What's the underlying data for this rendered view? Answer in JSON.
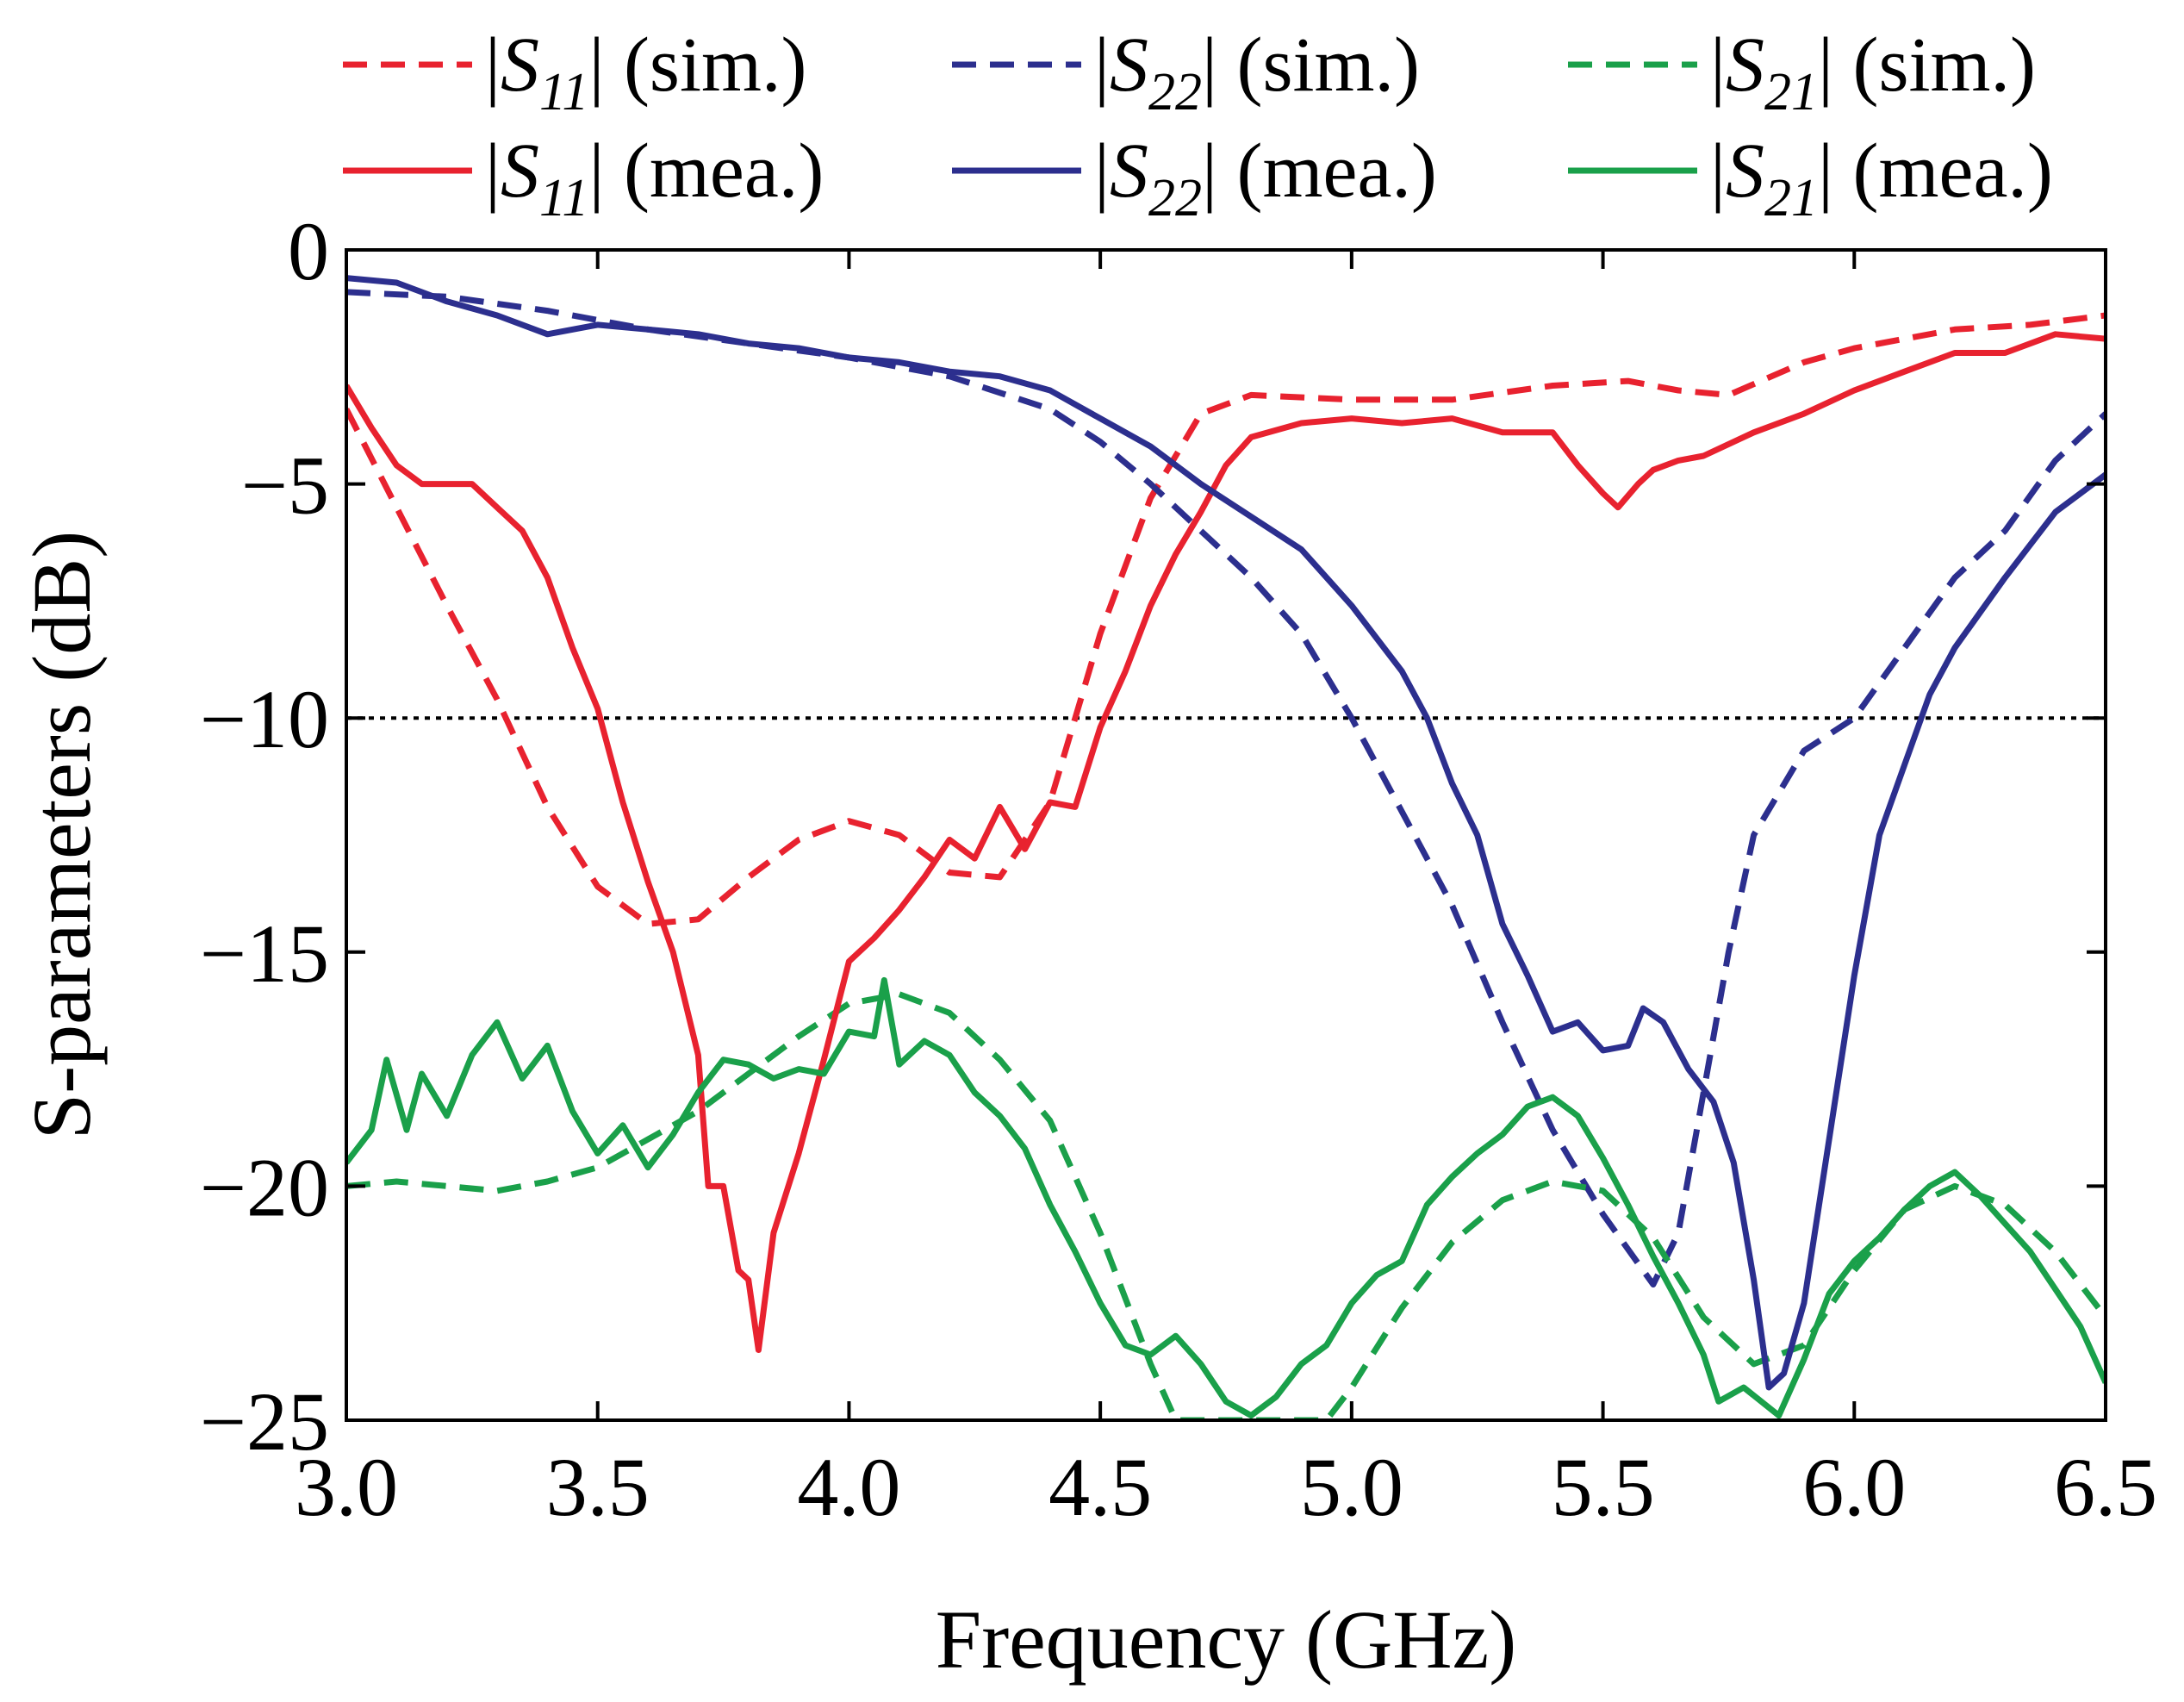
{
  "chart_data": {
    "type": "line",
    "title": "",
    "xlabel": "Frequency (GHz)",
    "ylabel": "S-parameters (dB)",
    "xlim": [
      3.0,
      6.5
    ],
    "ylim": [
      -25,
      0
    ],
    "xticks": [
      3.0,
      3.5,
      4.0,
      4.5,
      5.0,
      5.5,
      6.0,
      6.5
    ],
    "xtick_labels": [
      "3.0",
      "3.5",
      "4.0",
      "4.5",
      "5.0",
      "5.5",
      "6.0",
      "6.5"
    ],
    "yticks": [
      0,
      -5,
      -10,
      -15,
      -20,
      -25
    ],
    "ytick_labels": [
      "0",
      "−5",
      "−10",
      "−15",
      "−20",
      "−25"
    ],
    "reference_line": {
      "y": -10,
      "style": "dotted",
      "color": "#000000"
    },
    "legend_position": "top",
    "series": [
      {
        "name": "|S11| (sim.)",
        "sym": "S",
        "sub": "11",
        "note": "(sim.)",
        "color": "#e8222f",
        "style": "dashed",
        "points": [
          [
            3.0,
            -3.4
          ],
          [
            3.1,
            -5.5
          ],
          [
            3.2,
            -7.6
          ],
          [
            3.3,
            -9.6
          ],
          [
            3.4,
            -11.9
          ],
          [
            3.5,
            -13.6
          ],
          [
            3.6,
            -14.4
          ],
          [
            3.7,
            -14.3
          ],
          [
            3.8,
            -13.4
          ],
          [
            3.9,
            -12.6
          ],
          [
            4.0,
            -12.2
          ],
          [
            4.1,
            -12.5
          ],
          [
            4.2,
            -13.3
          ],
          [
            4.3,
            -13.4
          ],
          [
            4.4,
            -11.8
          ],
          [
            4.45,
            -10.0
          ],
          [
            4.5,
            -8.2
          ],
          [
            4.6,
            -5.3
          ],
          [
            4.7,
            -3.5
          ],
          [
            4.8,
            -3.1
          ],
          [
            5.0,
            -3.2
          ],
          [
            5.2,
            -3.2
          ],
          [
            5.4,
            -2.9
          ],
          [
            5.55,
            -2.8
          ],
          [
            5.65,
            -3.0
          ],
          [
            5.75,
            -3.1
          ],
          [
            5.9,
            -2.4
          ],
          [
            6.0,
            -2.1
          ],
          [
            6.2,
            -1.7
          ],
          [
            6.35,
            -1.6
          ],
          [
            6.5,
            -1.4
          ]
        ]
      },
      {
        "name": "|S22| (sim.)",
        "sym": "S",
        "sub": "22",
        "note": "(sim.)",
        "color": "#2c2f8e",
        "style": "dashed",
        "points": [
          [
            3.0,
            -0.9
          ],
          [
            3.2,
            -1.0
          ],
          [
            3.4,
            -1.3
          ],
          [
            3.6,
            -1.7
          ],
          [
            3.8,
            -2.0
          ],
          [
            4.0,
            -2.3
          ],
          [
            4.2,
            -2.7
          ],
          [
            4.4,
            -3.4
          ],
          [
            4.5,
            -4.1
          ],
          [
            4.6,
            -5.0
          ],
          [
            4.7,
            -6.0
          ],
          [
            4.8,
            -7.0
          ],
          [
            4.9,
            -8.2
          ],
          [
            5.0,
            -10.0
          ],
          [
            5.1,
            -12.0
          ],
          [
            5.2,
            -14.0
          ],
          [
            5.3,
            -16.5
          ],
          [
            5.4,
            -18.8
          ],
          [
            5.5,
            -20.6
          ],
          [
            5.6,
            -22.1
          ],
          [
            5.65,
            -21.0
          ],
          [
            5.7,
            -18.0
          ],
          [
            5.75,
            -15.0
          ],
          [
            5.8,
            -12.5
          ],
          [
            5.9,
            -10.7
          ],
          [
            6.0,
            -10.0
          ],
          [
            6.1,
            -8.5
          ],
          [
            6.2,
            -7.0
          ],
          [
            6.3,
            -6.0
          ],
          [
            6.4,
            -4.5
          ],
          [
            6.5,
            -3.5
          ]
        ]
      },
      {
        "name": "|S21| (sim.)",
        "sym": "S",
        "sub": "21",
        "note": "(sim.)",
        "color": "#1aa04a",
        "style": "dashed",
        "points": [
          [
            3.0,
            -20.0
          ],
          [
            3.1,
            -19.9
          ],
          [
            3.2,
            -20.0
          ],
          [
            3.3,
            -20.1
          ],
          [
            3.4,
            -19.9
          ],
          [
            3.5,
            -19.6
          ],
          [
            3.6,
            -19.0
          ],
          [
            3.7,
            -18.4
          ],
          [
            3.8,
            -17.6
          ],
          [
            3.9,
            -16.8
          ],
          [
            4.0,
            -16.1
          ],
          [
            4.1,
            -15.9
          ],
          [
            4.2,
            -16.3
          ],
          [
            4.3,
            -17.3
          ],
          [
            4.4,
            -18.6
          ],
          [
            4.5,
            -21.0
          ],
          [
            4.6,
            -23.8
          ],
          [
            4.65,
            -25.0
          ],
          [
            4.95,
            -25.0
          ],
          [
            5.0,
            -24.3
          ],
          [
            5.1,
            -22.6
          ],
          [
            5.2,
            -21.2
          ],
          [
            5.3,
            -20.3
          ],
          [
            5.4,
            -19.9
          ],
          [
            5.5,
            -20.1
          ],
          [
            5.6,
            -21.1
          ],
          [
            5.7,
            -22.8
          ],
          [
            5.8,
            -23.8
          ],
          [
            5.9,
            -23.4
          ],
          [
            6.0,
            -21.8
          ],
          [
            6.1,
            -20.5
          ],
          [
            6.2,
            -20.0
          ],
          [
            6.3,
            -20.4
          ],
          [
            6.4,
            -21.4
          ],
          [
            6.5,
            -22.8
          ]
        ]
      },
      {
        "name": "|S11| (mea.)",
        "sym": "S",
        "sub": "11",
        "note": "(mea.)",
        "color": "#e8222f",
        "style": "solid",
        "points": [
          [
            3.0,
            -2.9
          ],
          [
            3.05,
            -3.8
          ],
          [
            3.1,
            -4.6
          ],
          [
            3.15,
            -5.0
          ],
          [
            3.2,
            -5.0
          ],
          [
            3.25,
            -5.0
          ],
          [
            3.3,
            -5.5
          ],
          [
            3.35,
            -6.0
          ],
          [
            3.4,
            -7.0
          ],
          [
            3.45,
            -8.5
          ],
          [
            3.5,
            -9.8
          ],
          [
            3.55,
            -11.8
          ],
          [
            3.6,
            -13.5
          ],
          [
            3.65,
            -15.0
          ],
          [
            3.7,
            -17.2
          ],
          [
            3.72,
            -20.0
          ],
          [
            3.75,
            -20.0
          ],
          [
            3.78,
            -21.8
          ],
          [
            3.8,
            -22.0
          ],
          [
            3.82,
            -23.5
          ],
          [
            3.85,
            -21.0
          ],
          [
            3.9,
            -19.3
          ],
          [
            3.95,
            -17.3
          ],
          [
            4.0,
            -15.2
          ],
          [
            4.05,
            -14.7
          ],
          [
            4.1,
            -14.1
          ],
          [
            4.15,
            -13.4
          ],
          [
            4.2,
            -12.6
          ],
          [
            4.25,
            -13.0
          ],
          [
            4.3,
            -11.9
          ],
          [
            4.35,
            -12.8
          ],
          [
            4.4,
            -11.8
          ],
          [
            4.45,
            -11.9
          ],
          [
            4.5,
            -10.2
          ],
          [
            4.55,
            -9.0
          ],
          [
            4.6,
            -7.6
          ],
          [
            4.65,
            -6.5
          ],
          [
            4.7,
            -5.6
          ],
          [
            4.75,
            -4.6
          ],
          [
            4.8,
            -4.0
          ],
          [
            4.9,
            -3.7
          ],
          [
            5.0,
            -3.6
          ],
          [
            5.1,
            -3.7
          ],
          [
            5.2,
            -3.6
          ],
          [
            5.3,
            -3.9
          ],
          [
            5.4,
            -3.9
          ],
          [
            5.45,
            -4.6
          ],
          [
            5.5,
            -5.2
          ],
          [
            5.53,
            -5.5
          ],
          [
            5.57,
            -5.0
          ],
          [
            5.6,
            -4.7
          ],
          [
            5.65,
            -4.5
          ],
          [
            5.7,
            -4.4
          ],
          [
            5.8,
            -3.9
          ],
          [
            5.9,
            -3.5
          ],
          [
            6.0,
            -3.0
          ],
          [
            6.1,
            -2.6
          ],
          [
            6.2,
            -2.2
          ],
          [
            6.3,
            -2.2
          ],
          [
            6.4,
            -1.8
          ],
          [
            6.5,
            -1.9
          ]
        ]
      },
      {
        "name": "|S22| (mea.)",
        "sym": "S",
        "sub": "22",
        "note": "(mea.)",
        "color": "#2c2f8e",
        "style": "solid",
        "points": [
          [
            3.0,
            -0.6
          ],
          [
            3.1,
            -0.7
          ],
          [
            3.2,
            -1.1
          ],
          [
            3.3,
            -1.4
          ],
          [
            3.4,
            -1.8
          ],
          [
            3.5,
            -1.6
          ],
          [
            3.6,
            -1.7
          ],
          [
            3.7,
            -1.8
          ],
          [
            3.8,
            -2.0
          ],
          [
            3.9,
            -2.1
          ],
          [
            4.0,
            -2.3
          ],
          [
            4.1,
            -2.4
          ],
          [
            4.2,
            -2.6
          ],
          [
            4.3,
            -2.7
          ],
          [
            4.4,
            -3.0
          ],
          [
            4.5,
            -3.6
          ],
          [
            4.6,
            -4.2
          ],
          [
            4.7,
            -5.0
          ],
          [
            4.8,
            -5.7
          ],
          [
            4.9,
            -6.4
          ],
          [
            5.0,
            -7.6
          ],
          [
            5.1,
            -9.0
          ],
          [
            5.15,
            -10.0
          ],
          [
            5.2,
            -11.4
          ],
          [
            5.25,
            -12.5
          ],
          [
            5.3,
            -14.4
          ],
          [
            5.35,
            -15.5
          ],
          [
            5.4,
            -16.7
          ],
          [
            5.45,
            -16.5
          ],
          [
            5.5,
            -17.1
          ],
          [
            5.55,
            -17.0
          ],
          [
            5.58,
            -16.2
          ],
          [
            5.62,
            -16.5
          ],
          [
            5.67,
            -17.5
          ],
          [
            5.72,
            -18.2
          ],
          [
            5.76,
            -19.5
          ],
          [
            5.8,
            -22.0
          ],
          [
            5.83,
            -24.3
          ],
          [
            5.86,
            -24.0
          ],
          [
            5.9,
            -22.5
          ],
          [
            5.95,
            -19.0
          ],
          [
            6.0,
            -15.5
          ],
          [
            6.05,
            -12.5
          ],
          [
            6.1,
            -11.0
          ],
          [
            6.15,
            -9.5
          ],
          [
            6.2,
            -8.5
          ],
          [
            6.3,
            -7.0
          ],
          [
            6.4,
            -5.6
          ],
          [
            6.5,
            -4.8
          ]
        ]
      },
      {
        "name": "|S21| (mea.)",
        "sym": "S",
        "sub": "21",
        "note": "(mea.)",
        "color": "#1aa04a",
        "style": "solid",
        "points": [
          [
            3.0,
            -19.5
          ],
          [
            3.05,
            -18.8
          ],
          [
            3.08,
            -17.3
          ],
          [
            3.12,
            -18.8
          ],
          [
            3.15,
            -17.6
          ],
          [
            3.2,
            -18.5
          ],
          [
            3.25,
            -17.2
          ],
          [
            3.3,
            -16.5
          ],
          [
            3.35,
            -17.7
          ],
          [
            3.4,
            -17.0
          ],
          [
            3.45,
            -18.4
          ],
          [
            3.5,
            -19.3
          ],
          [
            3.55,
            -18.7
          ],
          [
            3.6,
            -19.6
          ],
          [
            3.65,
            -18.9
          ],
          [
            3.7,
            -18.0
          ],
          [
            3.75,
            -17.3
          ],
          [
            3.8,
            -17.4
          ],
          [
            3.85,
            -17.7
          ],
          [
            3.9,
            -17.5
          ],
          [
            3.95,
            -17.6
          ],
          [
            4.0,
            -16.7
          ],
          [
            4.05,
            -16.8
          ],
          [
            4.07,
            -15.6
          ],
          [
            4.1,
            -17.4
          ],
          [
            4.15,
            -16.9
          ],
          [
            4.2,
            -17.2
          ],
          [
            4.25,
            -18.0
          ],
          [
            4.3,
            -18.5
          ],
          [
            4.35,
            -19.2
          ],
          [
            4.4,
            -20.4
          ],
          [
            4.45,
            -21.4
          ],
          [
            4.5,
            -22.5
          ],
          [
            4.55,
            -23.4
          ],
          [
            4.6,
            -23.6
          ],
          [
            4.65,
            -23.2
          ],
          [
            4.7,
            -23.8
          ],
          [
            4.75,
            -24.6
          ],
          [
            4.8,
            -24.9
          ],
          [
            4.85,
            -24.5
          ],
          [
            4.9,
            -23.8
          ],
          [
            4.95,
            -23.4
          ],
          [
            5.0,
            -22.5
          ],
          [
            5.05,
            -21.9
          ],
          [
            5.1,
            -21.6
          ],
          [
            5.15,
            -20.4
          ],
          [
            5.2,
            -19.8
          ],
          [
            5.25,
            -19.3
          ],
          [
            5.3,
            -18.9
          ],
          [
            5.35,
            -18.3
          ],
          [
            5.4,
            -18.1
          ],
          [
            5.45,
            -18.5
          ],
          [
            5.5,
            -19.4
          ],
          [
            5.55,
            -20.4
          ],
          [
            5.6,
            -21.5
          ],
          [
            5.65,
            -22.5
          ],
          [
            5.7,
            -23.6
          ],
          [
            5.73,
            -24.6
          ],
          [
            5.78,
            -24.3
          ],
          [
            5.85,
            -24.9
          ],
          [
            5.9,
            -23.7
          ],
          [
            5.95,
            -22.3
          ],
          [
            6.0,
            -21.6
          ],
          [
            6.05,
            -21.1
          ],
          [
            6.1,
            -20.5
          ],
          [
            6.15,
            -20.0
          ],
          [
            6.2,
            -19.7
          ],
          [
            6.25,
            -20.2
          ],
          [
            6.3,
            -20.8
          ],
          [
            6.35,
            -21.4
          ],
          [
            6.4,
            -22.2
          ],
          [
            6.45,
            -23.0
          ],
          [
            6.5,
            -24.2
          ]
        ]
      }
    ]
  }
}
